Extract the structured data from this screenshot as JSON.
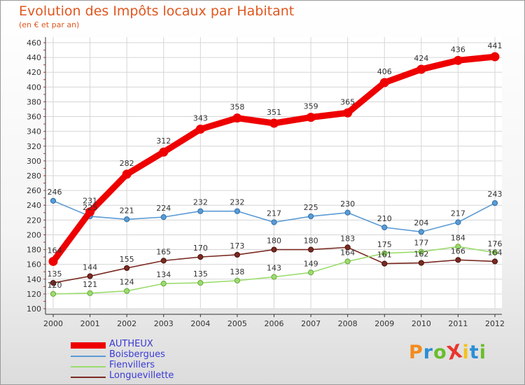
{
  "title": "Evolution des Impôts locaux par Habitant",
  "subtitle": "(en € et par an)",
  "logo_text": "ProXiti",
  "logo_colors": [
    "#f28b1d",
    "#2b8fd6",
    "#6abd2c",
    "#e8362f",
    "#f2c21b",
    "#2b8fd6",
    "#6abd2c"
  ],
  "chart_data": {
    "type": "line",
    "title": "Evolution des Impôts locaux par Habitant",
    "subtitle": "(en € et par an)",
    "xlabel": "",
    "ylabel": "",
    "ylim": [
      100,
      460
    ],
    "yticks": [
      100,
      120,
      140,
      160,
      180,
      200,
      220,
      240,
      260,
      280,
      300,
      320,
      340,
      360,
      380,
      400,
      420,
      440,
      460
    ],
    "x": [
      "2000",
      "2001",
      "2002",
      "2003",
      "2004",
      "2005",
      "2006",
      "2007",
      "2008",
      "2009",
      "2010",
      "2011",
      "2012"
    ],
    "grid": true,
    "legend_position": "bottom-left",
    "series": [
      {
        "name": "AUTHEUX",
        "color": "#ee0000",
        "values": [
          164,
          231,
          282,
          312,
          343,
          358,
          351,
          359,
          365,
          406,
          424,
          436,
          441
        ]
      },
      {
        "name": "Boisbergues",
        "color": "#5b9bd5",
        "values": [
          246,
          225,
          221,
          224,
          232,
          232,
          217,
          225,
          230,
          210,
          204,
          217,
          243
        ]
      },
      {
        "name": "Fienvillers",
        "color": "#9bdc6e",
        "values": [
          120,
          121,
          124,
          134,
          135,
          138,
          143,
          149,
          164,
          175,
          177,
          184,
          176
        ]
      },
      {
        "name": "Longuevillette",
        "color": "#7a2a22",
        "values": [
          135,
          144,
          155,
          165,
          170,
          173,
          180,
          180,
          183,
          161,
          162,
          166,
          164
        ]
      }
    ]
  }
}
